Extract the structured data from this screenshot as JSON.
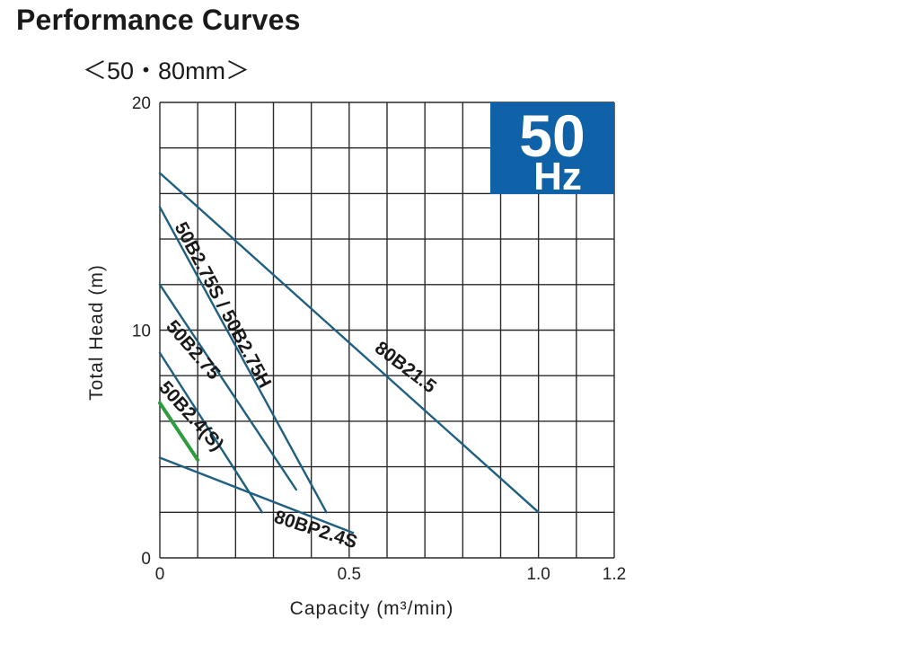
{
  "page": {
    "title": "Performance Curves",
    "subtitle": "＜50・80mm＞"
  },
  "badge": {
    "number": "50",
    "unit": "Hz",
    "color": "#0f62a8"
  },
  "colors": {
    "curve": "#1f5f82",
    "highlight": "#2e9b3c",
    "grid": "#2a2a2a"
  },
  "chart_data": {
    "type": "line",
    "xlabel": "Capacity (m³/min)",
    "ylabel": "Total Head (m)",
    "xlim": [
      0,
      1.2
    ],
    "ylim": [
      0,
      20
    ],
    "x_gridlines": [
      0,
      0.1,
      0.2,
      0.3,
      0.4,
      0.5,
      0.6,
      0.7,
      0.8,
      0.9,
      1.0,
      1.1,
      1.2
    ],
    "y_gridlines": [
      0,
      2,
      4,
      6,
      8,
      10,
      12,
      14,
      16,
      18,
      20
    ],
    "x_ticks": [
      {
        "value": 0,
        "label": "0"
      },
      {
        "value": 0.5,
        "label": "0.5"
      },
      {
        "value": 1.0,
        "label": "1.0"
      },
      {
        "value": 1.2,
        "label": "1.2"
      }
    ],
    "y_ticks": [
      {
        "value": 0,
        "label": "0"
      },
      {
        "value": 10,
        "label": "10"
      },
      {
        "value": 20,
        "label": "20"
      }
    ],
    "grid": true,
    "series": [
      {
        "name": "80B21.5",
        "points": [
          [
            0,
            16.9
          ],
          [
            1.0,
            2.0
          ]
        ]
      },
      {
        "name": "50B2.75S / 50B2.75H",
        "points": [
          [
            0,
            15.4
          ],
          [
            0.44,
            2.0
          ]
        ]
      },
      {
        "name": "50B2.75",
        "points": [
          [
            0,
            12.0
          ],
          [
            0.36,
            3.0
          ]
        ]
      },
      {
        "name": "50B2.4(S)",
        "points": [
          [
            0,
            9.0
          ],
          [
            0.27,
            2.0
          ]
        ]
      },
      {
        "name": "80BP2.4S",
        "points": [
          [
            0,
            4.4
          ],
          [
            0.51,
            1.1
          ]
        ]
      },
      {
        "name": "",
        "points": [
          [
            0,
            6.8
          ],
          [
            0.1,
            4.3
          ]
        ],
        "highlight": true
      }
    ]
  }
}
